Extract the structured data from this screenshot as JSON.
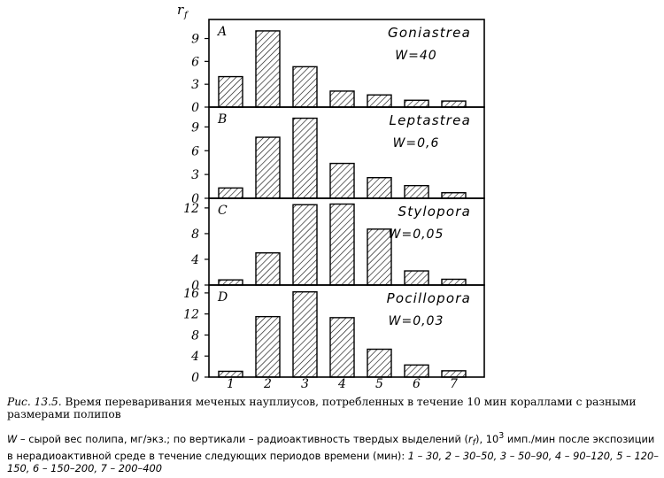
{
  "figure": {
    "y_label": "r",
    "y_label_sub": "f",
    "x_ticks": [
      "1",
      "2",
      "3",
      "4",
      "5",
      "6",
      "7"
    ]
  },
  "chart_data": [
    {
      "type": "bar",
      "panel": "A",
      "label": "Goniastrea",
      "weight": "W=40",
      "categories": [
        "1",
        "2",
        "3",
        "4",
        "5",
        "6",
        "7"
      ],
      "values": [
        4.0,
        10.0,
        5.3,
        2.1,
        1.6,
        0.9,
        0.8
      ],
      "yticks": [
        "0",
        "3",
        "6",
        "9"
      ],
      "ylim": [
        0,
        11.5
      ]
    },
    {
      "type": "bar",
      "panel": "B",
      "label": "Leptastrea",
      "weight": "W=0,6",
      "categories": [
        "1",
        "2",
        "3",
        "4",
        "5",
        "6",
        "7"
      ],
      "values": [
        1.3,
        7.7,
        10.1,
        4.4,
        2.6,
        1.6,
        0.7
      ],
      "yticks": [
        "0",
        "3",
        "6",
        "9"
      ],
      "ylim": [
        0,
        11.5
      ]
    },
    {
      "type": "bar",
      "panel": "C",
      "label": "Stylopora",
      "weight": "W=0,05",
      "categories": [
        "1",
        "2",
        "3",
        "4",
        "5",
        "6",
        "7"
      ],
      "values": [
        0.8,
        5.0,
        12.5,
        12.6,
        8.7,
        2.2,
        0.9
      ],
      "yticks": [
        "0",
        "4",
        "8",
        "12"
      ],
      "ylim": [
        0,
        13.5
      ]
    },
    {
      "type": "bar",
      "panel": "D",
      "label": "Pocillopora",
      "weight": "W=0,03",
      "categories": [
        "1",
        "2",
        "3",
        "4",
        "5",
        "6",
        "7"
      ],
      "values": [
        1.1,
        11.5,
        16.2,
        11.3,
        5.3,
        2.3,
        1.2
      ],
      "yticks": [
        "0",
        "4",
        "8",
        "12",
        "16"
      ],
      "ylim": [
        0,
        17.5
      ]
    }
  ],
  "caption": {
    "ref": "Рис. 13.5.",
    "text": "Время переваривания меченых науплиусов, потребленных в течение 10 мин кораллами с разными размерами полипов",
    "note_w": "W",
    "note_1": " – сырой вес полипа, мг/экз.; по вертикали – радиоактивность твердых выделений (",
    "note_r": "r",
    "note_rsub": "f",
    "note_2": "), 10",
    "note_sup": "3",
    "note_3": " имп./мин после экспозиции в нерадиоактивной среде в течение следующих периодов времени (мин): ",
    "periods": "1 – 30, 2 – 30–50, 3 – 50–90, 4 – 90–120, 5 – 120–150, 6 – 150–200, 7 – 200–400"
  }
}
